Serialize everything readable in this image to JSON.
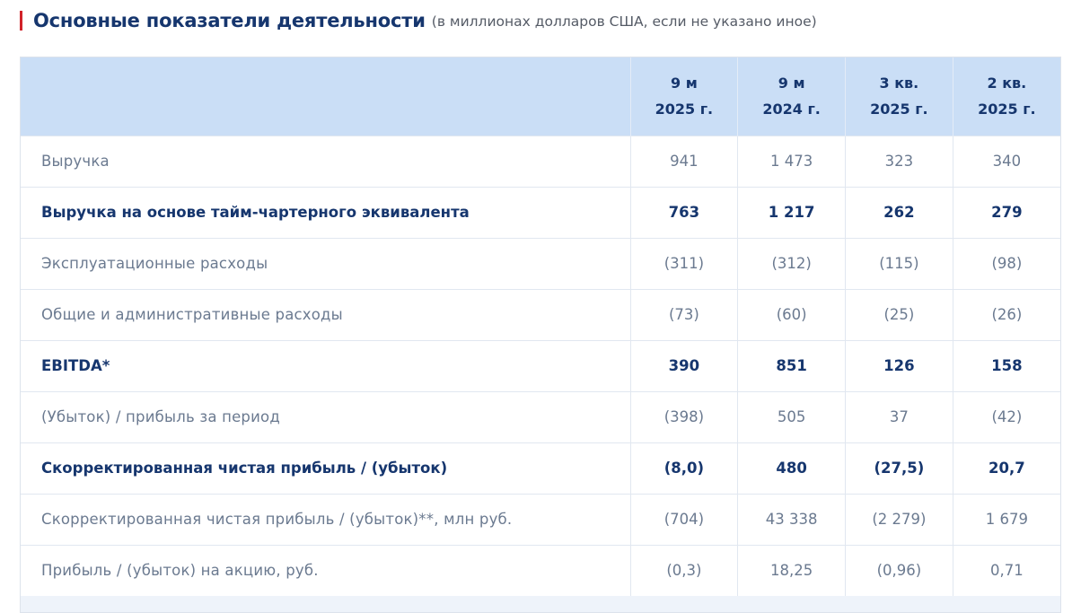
{
  "heading": {
    "title": "Основные показатели деятельности",
    "subtitle": "(в миллионах долларов США, если не указано иное)"
  },
  "table": {
    "columns": [
      {
        "line1": "9 м",
        "line2": "2025 г."
      },
      {
        "line1": "9 м",
        "line2": "2024 г."
      },
      {
        "line1": "3 кв.",
        "line2": "2025 г."
      },
      {
        "line1": "2 кв.",
        "line2": "2025 г."
      }
    ],
    "rows": [
      {
        "label": "Выручка",
        "bold": false,
        "values": [
          "941",
          "1 473",
          "323",
          "340"
        ]
      },
      {
        "label": "Выручка на основе тайм-чартерного эквивалента",
        "bold": true,
        "values": [
          "763",
          "1 217",
          "262",
          "279"
        ]
      },
      {
        "label": "Эксплуатационные расходы",
        "bold": false,
        "values": [
          "(311)",
          "(312)",
          "(115)",
          "(98)"
        ]
      },
      {
        "label": "Общие и административные расходы",
        "bold": false,
        "values": [
          "(73)",
          "(60)",
          "(25)",
          "(26)"
        ]
      },
      {
        "label": "EBITDA*",
        "bold": true,
        "values": [
          "390",
          "851",
          "126",
          "158"
        ]
      },
      {
        "label": "(Убыток) / прибыль за период",
        "bold": false,
        "values": [
          "(398)",
          "505",
          "37",
          "(42)"
        ]
      },
      {
        "label": "Скорректированная чистая прибыль / (убыток)",
        "bold": true,
        "values": [
          "(8,0)",
          "480",
          "(27,5)",
          "20,7"
        ]
      },
      {
        "label": "Скорректированная чистая прибыль / (убыток)**, млн руб.",
        "bold": false,
        "values": [
          "(704)",
          "43 338",
          "(2 279)",
          "1 679"
        ]
      },
      {
        "label": "Прибыль / (убыток) на акцию, руб.",
        "bold": false,
        "values": [
          "(0,3)",
          "18,25",
          "(0,96)",
          "0,71"
        ]
      }
    ]
  },
  "colors": {
    "accent_bar": "#d1232a",
    "heading": "#16366e",
    "header_bg": "#cadef6",
    "text_muted": "#6b7a90"
  }
}
